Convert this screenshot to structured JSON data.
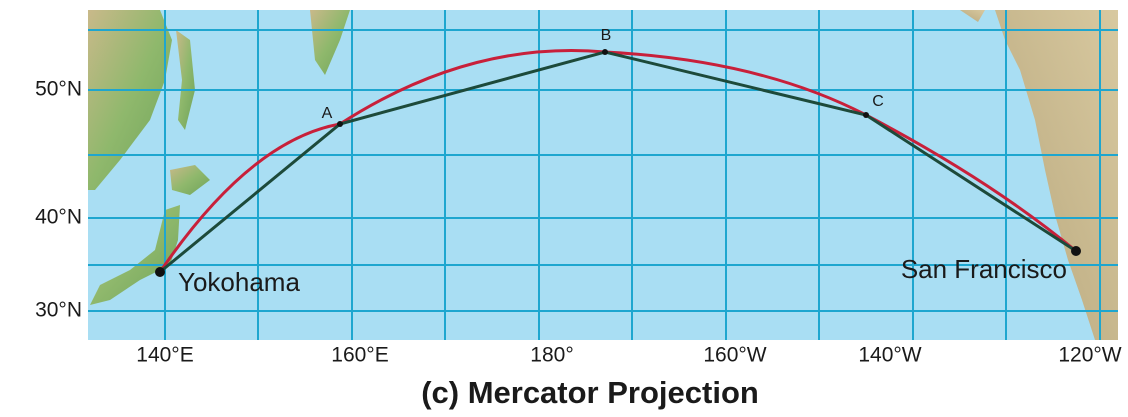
{
  "map": {
    "lat_labels": [
      "50°N",
      "40°N",
      "30°N"
    ],
    "lon_labels": [
      "140°E",
      "160°E",
      "180°",
      "160°W",
      "140°W",
      "120°W"
    ],
    "points": [
      {
        "label": "Yokohama"
      },
      {
        "label": "A"
      },
      {
        "label": "B"
      },
      {
        "label": "C"
      },
      {
        "label": "San Francisco"
      }
    ],
    "caption": "(c) Mercator Projection"
  }
}
